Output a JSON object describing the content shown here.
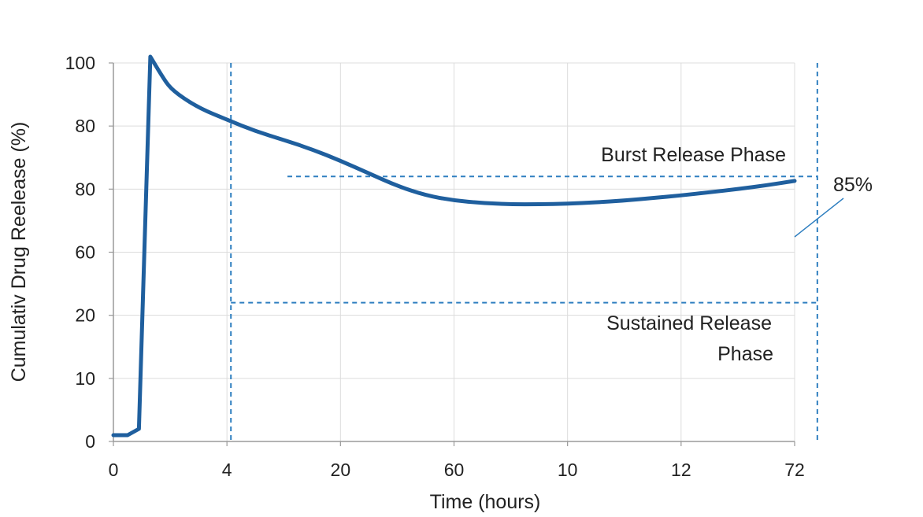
{
  "chart_data": {
    "type": "line",
    "title": "",
    "xlabel": "Time (hours)",
    "ylabel": "Cumulativ Drug Reelease (%)",
    "x_tick_labels": [
      "0",
      "4",
      "20",
      "60",
      "10",
      "12",
      "72"
    ],
    "y_tick_labels": [
      "0",
      "10",
      "20",
      "60",
      "80",
      "80",
      "100"
    ],
    "grid": true,
    "legend": "none",
    "colors": {
      "series": "#1f5f9e",
      "reference": "#2f7fc0",
      "grid": "#dcdcdc",
      "axis": "#9a9a9a",
      "text": "#222222"
    },
    "series": [
      {
        "x_pos": [
          0,
          0.25,
          0.45,
          0.65,
          0.85,
          1.0,
          1.3,
          1.6,
          2.0,
          2.5,
          3.0,
          3.5,
          4.0,
          4.5,
          5.0,
          5.5,
          6.0,
          6.5,
          7.0,
          7.5,
          8.0,
          8.5,
          9.0,
          9.5,
          10.0,
          10.5,
          11.0,
          11.5,
          12.0
        ],
        "y_pos": [
          0.1,
          0.1,
          0.2,
          6.1,
          5.8,
          5.6,
          5.4,
          5.25,
          5.1,
          4.92,
          4.78,
          4.63,
          4.45,
          4.25,
          4.05,
          3.9,
          3.82,
          3.78,
          3.76,
          3.76,
          3.77,
          3.79,
          3.82,
          3.86,
          3.9,
          3.95,
          4.0,
          4.06,
          4.13
        ]
      }
    ],
    "reference_lines": {
      "vertical_x_pos": [
        2.07,
        12.4
      ],
      "horizontal_y_pos": [
        4.2,
        2.2
      ]
    },
    "annotations": {
      "burst": "Burst Release Phase",
      "sustained_line1": "Sustained Release",
      "sustained_line2": "Phase",
      "endpoint": "85%"
    }
  }
}
